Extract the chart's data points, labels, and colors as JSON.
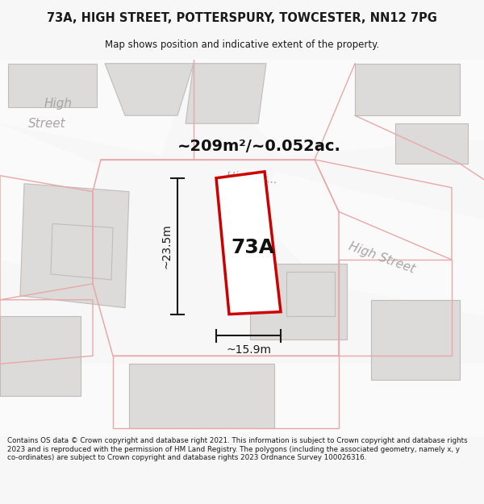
{
  "title": "73A, HIGH STREET, POTTERSPURY, TOWCESTER, NN12 7PG",
  "subtitle": "Map shows position and indicative extent of the property.",
  "area_text": "~209m²/~0.052ac.",
  "label_73A": "73A",
  "dim_height": "~23.5m",
  "dim_width": "~15.9m",
  "footer": "Contains OS data © Crown copyright and database right 2021. This information is subject to Crown copyright and database rights 2023 and is reproduced with the permission of HM Land Registry. The polygons (including the associated geometry, namely x, y co-ordinates) are subject to Crown copyright and database rights 2023 Ordnance Survey 100026316.",
  "bg_color": "#f7f7f7",
  "map_bg": "#f2f0f0",
  "building_fill": "#dddada",
  "building_edge": "#c0bcbc",
  "red_line_color": "#dd0000",
  "pink_line_color": "#e8a8a8",
  "street_label_color": "#aaa5a5",
  "dim_color": "#1a1a1a",
  "title_color": "#1a1a1a",
  "footer_color": "#1a1a1a",
  "highlight_fill": "#ffffff",
  "highlight_stroke": "#cc0000"
}
